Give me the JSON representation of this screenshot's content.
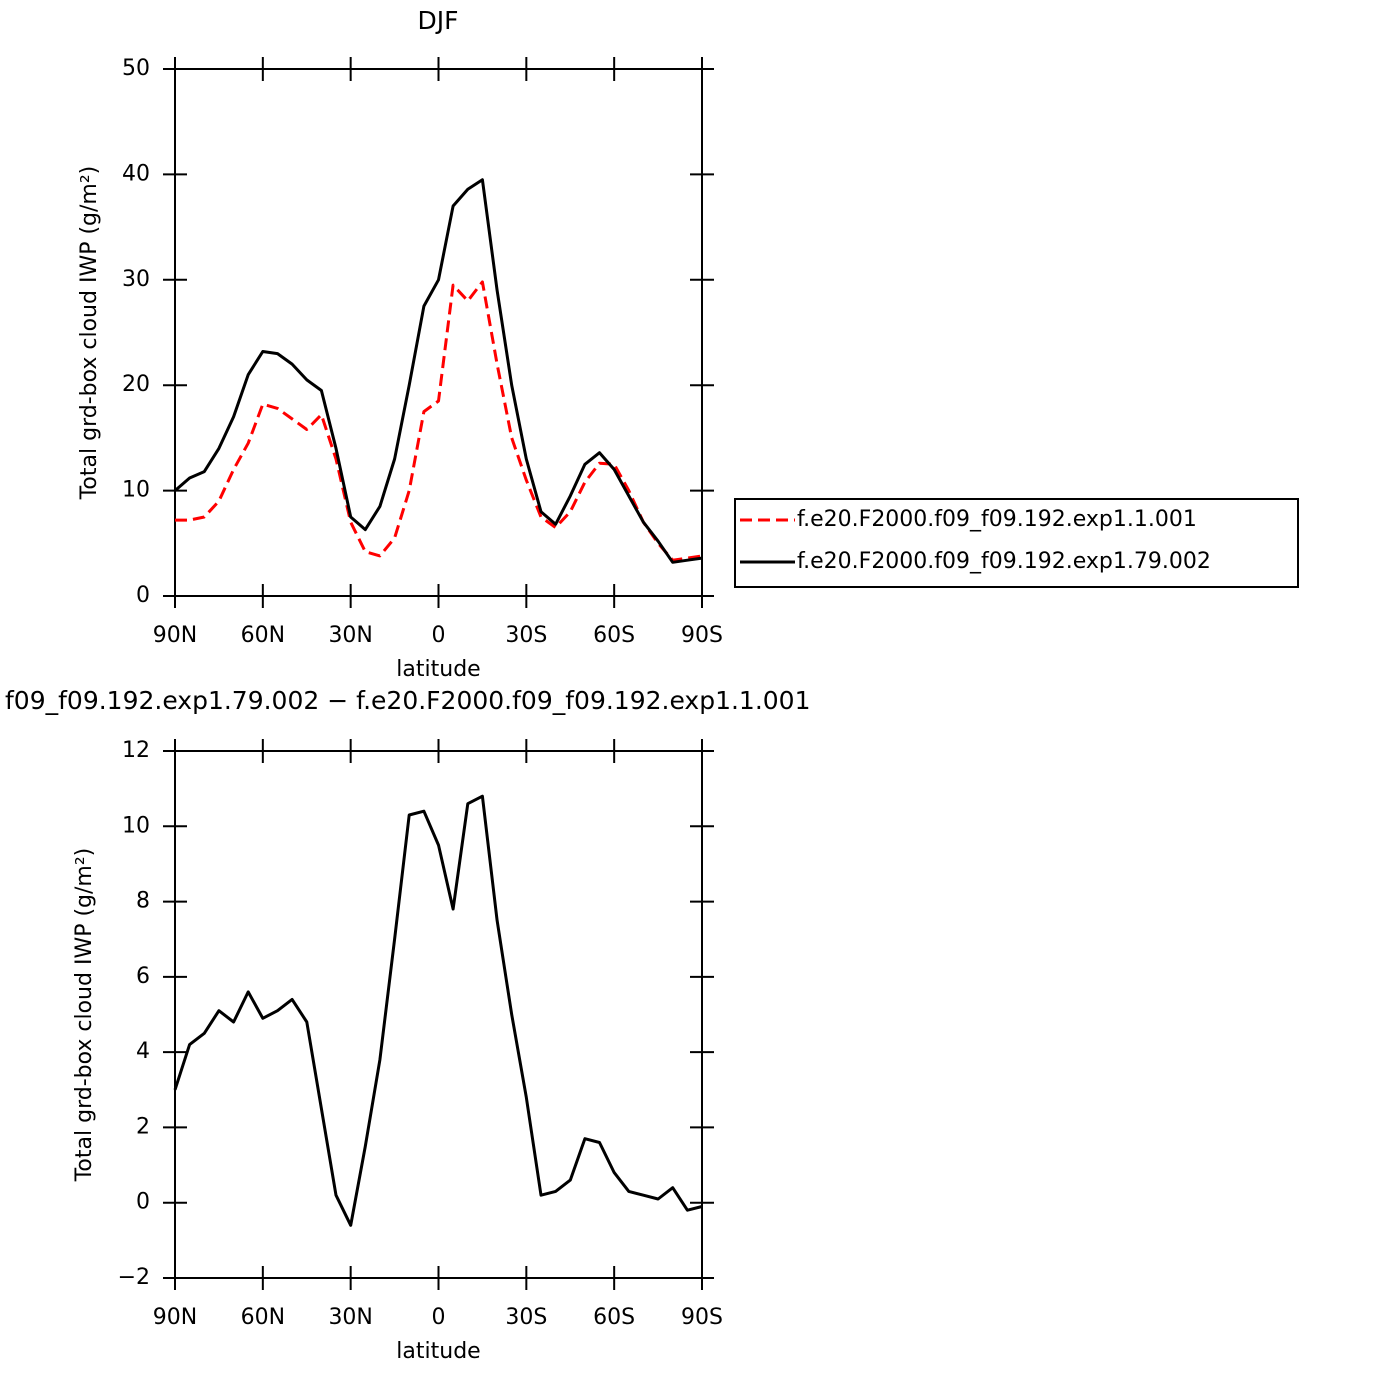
{
  "chart_data": [
    {
      "type": "line",
      "title": "DJF",
      "xlabel": "latitude",
      "ylabel": "Total grd-box cloud IWP (g/m²)",
      "x": [
        90,
        85,
        80,
        75,
        70,
        65,
        60,
        55,
        50,
        45,
        40,
        35,
        30,
        25,
        20,
        15,
        10,
        5,
        0,
        -5,
        -10,
        -15,
        -20,
        -25,
        -30,
        -35,
        -40,
        -45,
        -50,
        -55,
        -60,
        -65,
        -70,
        -75,
        -80,
        -85,
        -90
      ],
      "series": [
        {
          "name": "f.e20.F2000.f09_f09.192.exp1.1.001",
          "color": "#ff0000",
          "dash": true,
          "values": [
            7.2,
            7.2,
            7.5,
            9,
            12,
            14.5,
            18.2,
            17.8,
            16.8,
            15.8,
            17.2,
            13,
            7,
            4.2,
            3.8,
            5.5,
            10,
            17.5,
            18.5,
            29.5,
            28,
            29.8,
            22,
            15,
            11,
            7.5,
            6.5,
            8,
            10.8,
            12.6,
            12.5,
            10,
            7,
            5,
            3.4,
            3.6,
            3.8
          ]
        },
        {
          "name": "f.e20.F2000.f09_f09.192.exp1.79.002",
          "color": "#000000",
          "dash": false,
          "values": [
            10,
            11.2,
            11.8,
            14,
            17,
            21,
            23.2,
            23,
            22,
            20.5,
            19.5,
            14,
            7.5,
            6.3,
            8.5,
            13,
            20,
            27.5,
            30,
            37,
            38.6,
            39.5,
            29,
            20,
            13,
            8,
            6.8,
            9.5,
            12.5,
            13.6,
            12,
            9.5,
            7,
            5.2,
            3.2,
            3.4,
            3.6
          ]
        }
      ],
      "legend": "right",
      "xlim": [
        90,
        -90
      ],
      "xticks": [
        {
          "value": 90,
          "label": "90N"
        },
        {
          "value": 60,
          "label": "60N"
        },
        {
          "value": 30,
          "label": "30N"
        },
        0,
        {
          "value": -30,
          "label": "30S"
        },
        {
          "value": -60,
          "label": "60S"
        },
        {
          "value": -90,
          "label": "90S"
        }
      ],
      "ylim": [
        0,
        50
      ],
      "yticks": [
        0,
        10,
        20,
        30,
        40,
        50
      ]
    },
    {
      "type": "line",
      "title": "f09_f09.192.exp1.79.002 − f.e20.F2000.f09_f09.192.exp1.1.001",
      "xlabel": "latitude",
      "ylabel": "Total grd-box cloud IWP (g/m²)",
      "x": [
        90,
        85,
        80,
        75,
        70,
        65,
        60,
        55,
        50,
        45,
        40,
        35,
        30,
        25,
        20,
        15,
        10,
        5,
        0,
        -5,
        -10,
        -15,
        -20,
        -25,
        -30,
        -35,
        -40,
        -45,
        -50,
        -55,
        -60,
        -65,
        -70,
        -75,
        -80,
        -85,
        -90
      ],
      "values": [
        3.0,
        4.2,
        4.5,
        5.1,
        4.8,
        5.6,
        4.9,
        5.1,
        5.4,
        4.8,
        2.5,
        0.2,
        -0.6,
        1.5,
        3.8,
        7,
        10.3,
        10.4,
        9.5,
        7.8,
        10.6,
        10.8,
        7.5,
        5,
        2.8,
        0.2,
        0.3,
        0.6,
        1.7,
        1.6,
        0.8,
        0.3,
        0.2,
        0.1,
        0.4,
        -0.2,
        -0.1
      ],
      "color": "#000000",
      "xlim": [
        90,
        -90
      ],
      "xticks": [
        {
          "value": 90,
          "label": "90N"
        },
        {
          "value": 60,
          "label": "60N"
        },
        {
          "value": 30,
          "label": "30N"
        },
        0,
        {
          "value": -30,
          "label": "30S"
        },
        {
          "value": -60,
          "label": "60S"
        },
        {
          "value": -90,
          "label": "90S"
        }
      ],
      "ylim": [
        -2,
        12
      ],
      "yticks": [
        {
          "value": -2,
          "label": "−2"
        },
        0,
        2,
        4,
        6,
        8,
        10,
        12
      ]
    }
  ]
}
